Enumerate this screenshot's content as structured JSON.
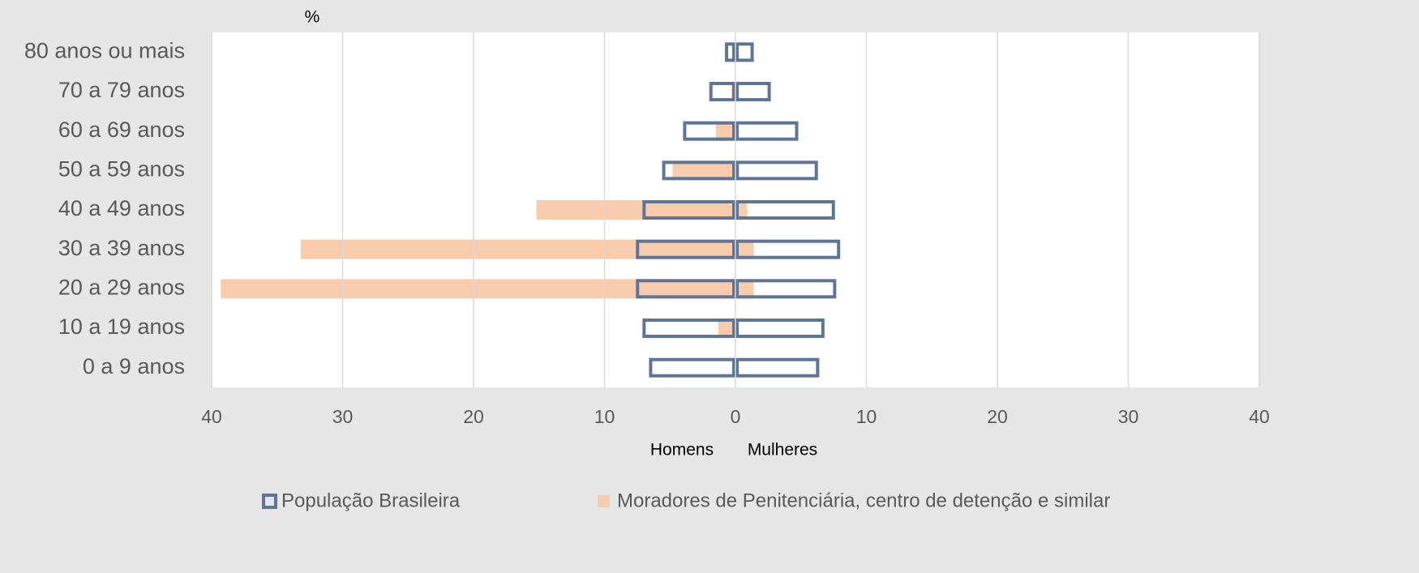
{
  "chart_data": {
    "type": "pyramid",
    "y_label": "%",
    "x_label_left": "Homens",
    "x_label_right": "Mulheres",
    "categories": [
      "0 a 9 anos",
      "10 a 19 anos",
      "20 a 29 anos",
      "30 a 39 anos",
      "40 a 49 anos",
      "50 a 59 anos",
      "60 a 69 anos",
      "70 a 79 anos",
      "80 anos ou mais"
    ],
    "series": [
      {
        "name": "Moradores de Penitenciária, centro de detenção e similar",
        "color": "#f8cbad",
        "style": "fill",
        "men_values": [
          0,
          -1.3,
          -39.3,
          -33.2,
          -15.2,
          -4.8,
          -1.5,
          -0.3,
          0
        ],
        "women_values": [
          0,
          0,
          1.4,
          1.4,
          0.9,
          0.3,
          0,
          0,
          0
        ]
      },
      {
        "name": "População Brasileira",
        "color": "#5f7597",
        "style": "outline",
        "men_values": [
          -6.6,
          -7.1,
          -7.6,
          -7.6,
          -7.1,
          -5.6,
          -4.0,
          -2.0,
          -0.8
        ],
        "women_values": [
          6.4,
          6.8,
          7.7,
          8.0,
          7.6,
          6.3,
          4.8,
          2.7,
          1.4
        ]
      }
    ],
    "xlim": [
      -40,
      40
    ],
    "xticks": [
      {
        "value": -40,
        "label": "40"
      },
      {
        "value": -30,
        "label": "30"
      },
      {
        "value": -20,
        "label": "20"
      },
      {
        "value": -10,
        "label": "10"
      },
      0,
      10,
      20,
      30,
      40
    ],
    "grid": true
  }
}
